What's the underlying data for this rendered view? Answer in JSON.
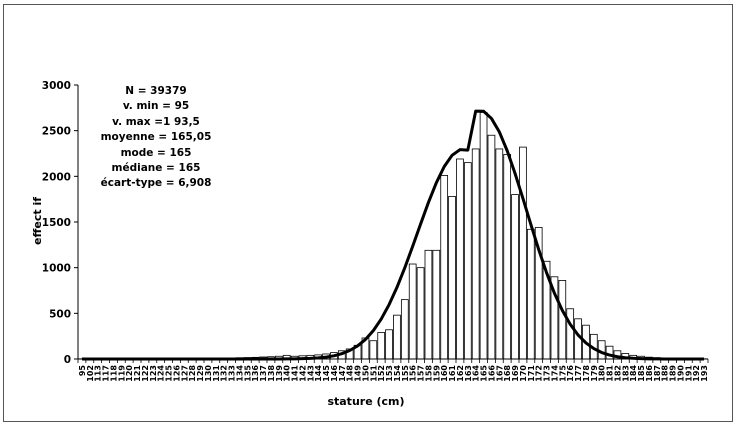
{
  "stats": {
    "n": "N = 39379",
    "vmin": "v. min = 95",
    "vmax": "v. max =1 93,5",
    "mean": "moyenne = 165,05",
    "mode": "mode = 165",
    "median": "médiane = 165",
    "sd": "écart-type = 6,908"
  },
  "chart_data": {
    "type": "bar",
    "xlabel": "stature (cm)",
    "ylabel": "effect if",
    "ylim": [
      0,
      3000
    ],
    "yticks": [
      0,
      500,
      1000,
      1500,
      2000,
      2500,
      3000
    ],
    "grid": false,
    "categories": [
      "95",
      "102",
      "113",
      "117",
      "118",
      "119",
      "120",
      "121",
      "122",
      "123",
      "124",
      "125",
      "126",
      "127",
      "128",
      "129",
      "130",
      "131",
      "132",
      "133",
      "134",
      "135",
      "136",
      "137",
      "138",
      "139",
      "140",
      "141",
      "142",
      "143",
      "144",
      "145",
      "146",
      "147",
      "148",
      "149",
      "150",
      "151",
      "152",
      "153",
      "154",
      "155",
      "156",
      "157",
      "158",
      "159",
      "160",
      "161",
      "162",
      "163",
      "164",
      "165",
      "166",
      "167",
      "168",
      "169",
      "170",
      "171",
      "172",
      "173",
      "174",
      "175",
      "176",
      "177",
      "178",
      "179",
      "180",
      "181",
      "182",
      "183",
      "184",
      "185",
      "186",
      "187",
      "188",
      "189",
      "190",
      "191",
      "192",
      "193"
    ],
    "series": [
      {
        "type": "bar",
        "values": [
          2,
          1,
          1,
          1,
          1,
          1,
          2,
          2,
          2,
          3,
          3,
          4,
          4,
          5,
          5,
          6,
          7,
          8,
          10,
          12,
          14,
          16,
          18,
          22,
          25,
          30,
          40,
          30,
          35,
          40,
          45,
          55,
          70,
          90,
          110,
          150,
          230,
          200,
          290,
          320,
          480,
          650,
          1040,
          1000,
          1190,
          1190,
          2010,
          1780,
          2190,
          2150,
          2300,
          2700,
          2450,
          2300,
          2240,
          1800,
          2320,
          1420,
          1440,
          1070,
          900,
          860,
          550,
          440,
          370,
          270,
          200,
          140,
          90,
          60,
          40,
          30,
          20,
          15,
          10,
          8,
          6,
          4,
          3,
          2
        ]
      },
      {
        "type": "line",
        "values": [
          0,
          0,
          0,
          0,
          0,
          0,
          0,
          0,
          0,
          0,
          0,
          0,
          0,
          0,
          0,
          0,
          0,
          0,
          0,
          0,
          0,
          0,
          0,
          0,
          0,
          0,
          1,
          2,
          4,
          7,
          12,
          21,
          35,
          58,
          93,
          143,
          214,
          311,
          437,
          595,
          784,
          1000,
          1234,
          1477,
          1714,
          1929,
          2106,
          2230,
          2292,
          2287,
          2714,
          2713,
          2634,
          2487,
          2280,
          2031,
          1758,
          1475,
          1199,
          945,
          720,
          532,
          381,
          263,
          176,
          114,
          71,
          43,
          25,
          14,
          8,
          4,
          2,
          1,
          0,
          0,
          0,
          0,
          0,
          0
        ]
      }
    ]
  }
}
